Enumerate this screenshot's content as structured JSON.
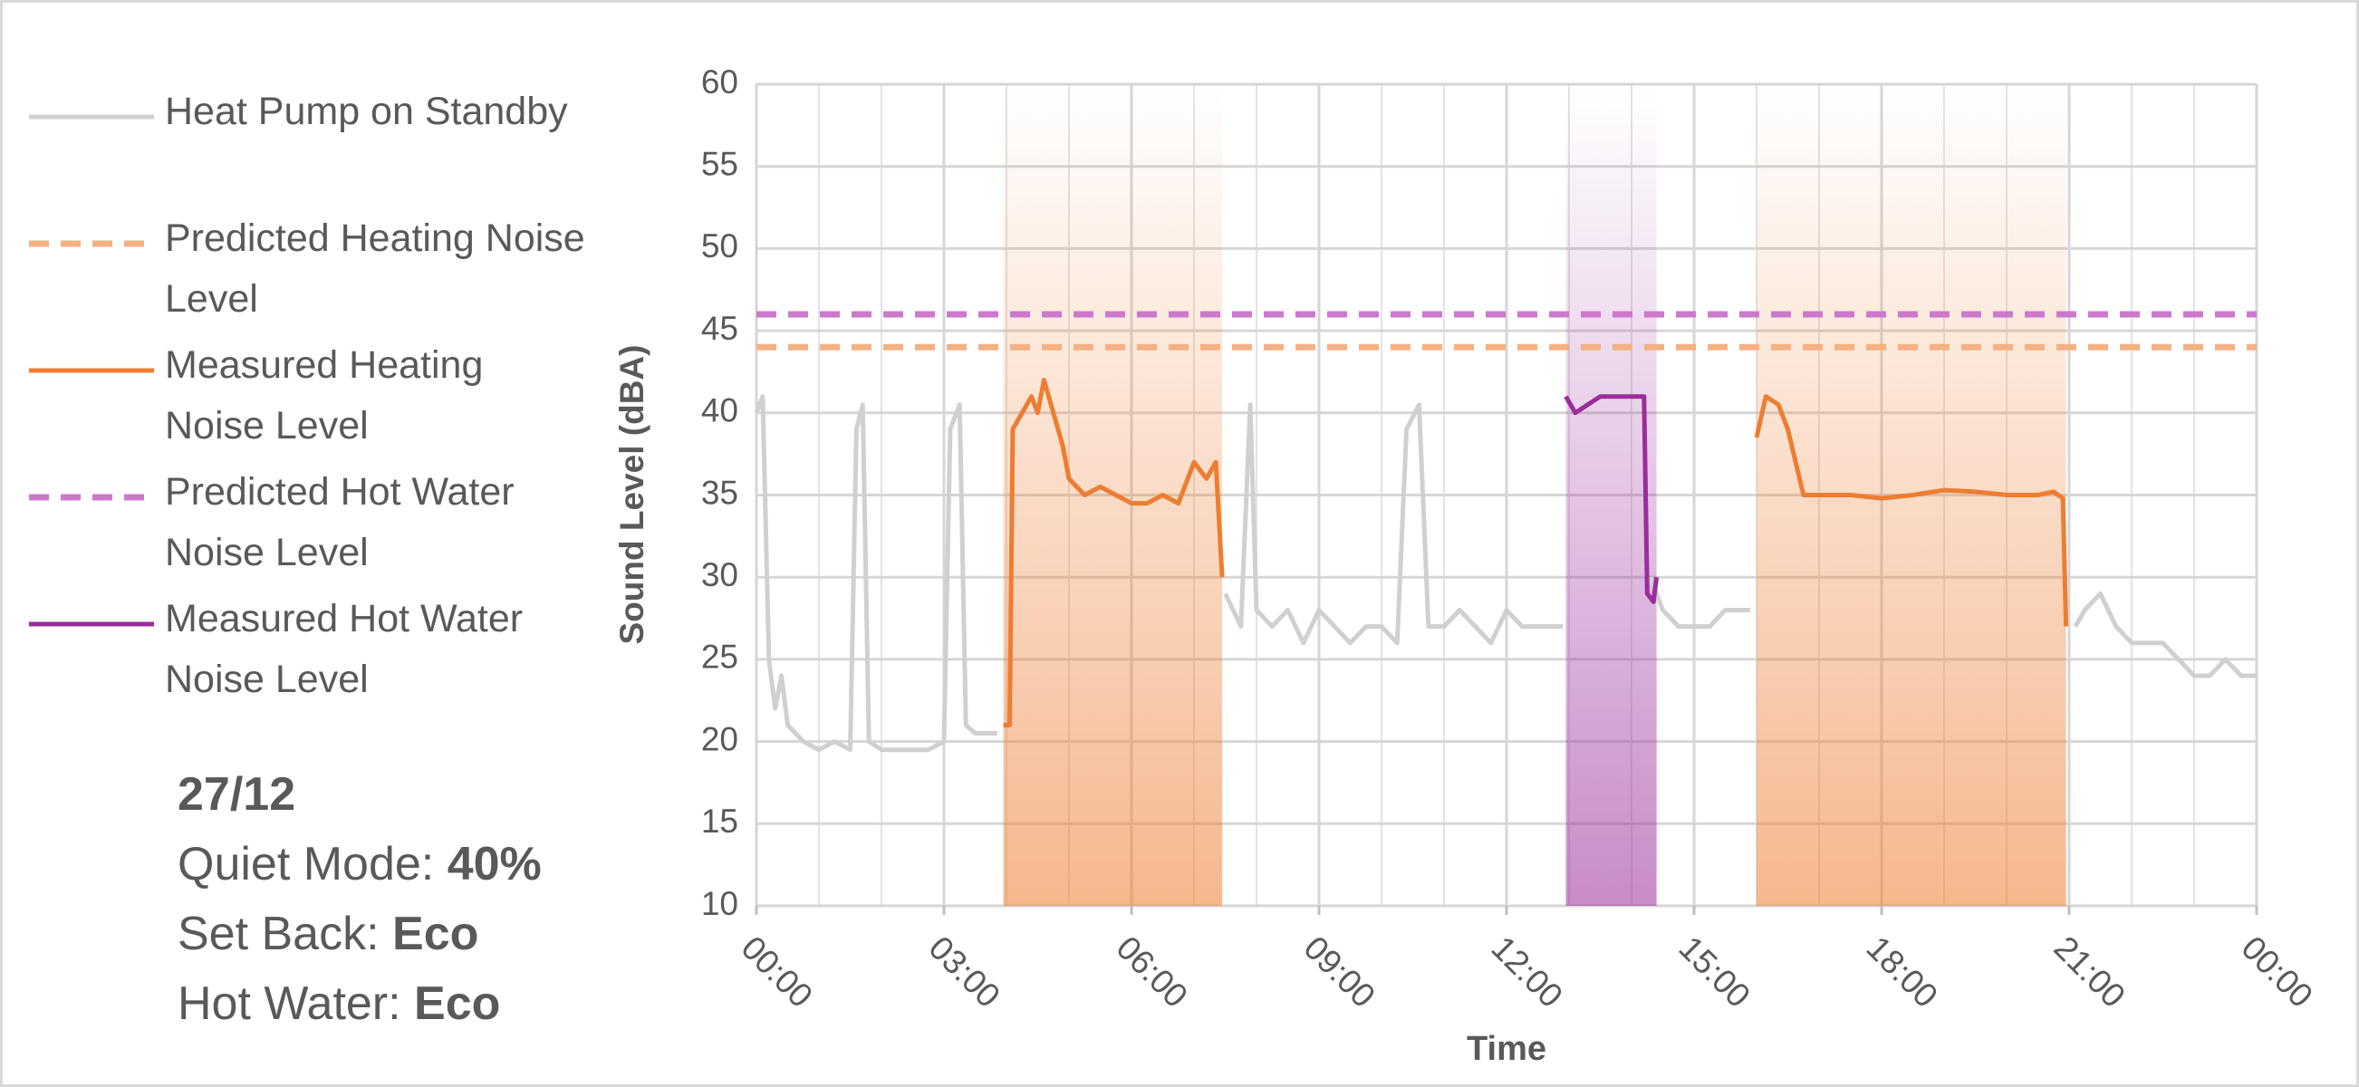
{
  "chart_data": {
    "type": "line",
    "xlabel": "Time",
    "ylabel": "Sound Level (dBA)",
    "xlim": [
      0,
      24
    ],
    "ylim": [
      10,
      60
    ],
    "xticks": [
      {
        "value": 0,
        "label": "00:00"
      },
      {
        "value": 3,
        "label": "03:00"
      },
      {
        "value": 6,
        "label": "06:00"
      },
      {
        "value": 9,
        "label": "09:00"
      },
      {
        "value": 12,
        "label": "12:00"
      },
      {
        "value": 15,
        "label": "15:00"
      },
      {
        "value": 18,
        "label": "18:00"
      },
      {
        "value": 21,
        "label": "21:00"
      },
      {
        "value": 24,
        "label": "00:00"
      }
    ],
    "yticks": [
      10,
      15,
      20,
      25,
      30,
      35,
      40,
      45,
      50,
      55,
      60
    ],
    "minor_grid_step": 1,
    "grid": true,
    "legend": "left",
    "series": [
      {
        "name": "Heat Pump on Standby",
        "color": "#d0d0d0",
        "dashed": false,
        "shaded": false,
        "x": [
          0,
          0.1,
          0.2,
          0.3,
          0.4,
          0.5,
          0.75,
          1,
          1.25,
          1.5,
          1.6,
          1.7,
          1.8,
          2,
          2.25,
          2.5,
          2.75,
          3,
          3.1,
          3.25,
          3.35,
          3.5,
          3.85,
          3.9,
          7.5,
          7.75,
          7.9,
          8,
          8.25,
          8.5,
          8.75,
          9,
          9.25,
          9.5,
          9.75,
          10,
          10.25,
          10.4,
          10.6,
          10.75,
          11,
          11.25,
          11.5,
          11.75,
          12,
          12.25,
          12.5,
          12.75,
          12.9,
          12.95,
          14.3,
          14.5,
          14.75,
          15,
          15.25,
          15.5,
          15.75,
          15.9,
          16,
          21.1,
          21.25,
          21.5,
          21.75,
          22,
          22.25,
          22.5,
          22.75,
          23,
          23.25,
          23.5,
          23.75,
          24
        ],
        "values": [
          40,
          41,
          25,
          22,
          24,
          21,
          20,
          19.5,
          20,
          19.5,
          39,
          40.5,
          20,
          19.5,
          19.5,
          19.5,
          19.5,
          20,
          39,
          40.5,
          21,
          20.5,
          20.5,
          null,
          29,
          27,
          40.5,
          28,
          27,
          28,
          26,
          28,
          27,
          26,
          27,
          27,
          26,
          39,
          40.5,
          27,
          27,
          28,
          27,
          26,
          28,
          27,
          27,
          27,
          27,
          null,
          30,
          28,
          27,
          27,
          27,
          28,
          28,
          28,
          null,
          27,
          28,
          29,
          27,
          26,
          26,
          26,
          25,
          24,
          24,
          25,
          24,
          24
        ]
      },
      {
        "name": "Predicted Heating Noise Level",
        "color": "#f4b183",
        "dashed": true,
        "shaded": false,
        "x": [
          0,
          24
        ],
        "values": [
          44,
          44
        ]
      },
      {
        "name": "Measured Heating Noise Level",
        "color": "#ed7d31",
        "dashed": false,
        "shaded": true,
        "x": [
          3.95,
          4.05,
          4.1,
          4.25,
          4.4,
          4.5,
          4.6,
          4.75,
          4.9,
          5,
          5.25,
          5.5,
          5.75,
          6,
          6.25,
          6.5,
          6.75,
          7,
          7.2,
          7.35,
          7.45,
          7.5,
          16,
          16.15,
          16.35,
          16.5,
          16.75,
          17,
          17.5,
          18,
          18.5,
          19,
          19.5,
          20,
          20.5,
          20.75,
          20.9,
          20.95
        ],
        "values": [
          21,
          21,
          39,
          40,
          41,
          40,
          42,
          40,
          38,
          36,
          35,
          35.5,
          35,
          34.5,
          34.5,
          35,
          34.5,
          37,
          36,
          37,
          30,
          null,
          38.5,
          41,
          40.5,
          39,
          35,
          35,
          35,
          34.8,
          35,
          35.3,
          35.2,
          35,
          35,
          35.2,
          34.8,
          27
        ]
      },
      {
        "name": "Predicted Hot Water Noise Level",
        "color": "#cc79cc",
        "dashed": true,
        "shaded": false,
        "x": [
          0,
          24
        ],
        "values": [
          46,
          46
        ]
      },
      {
        "name": "Measured Hot Water Noise Level",
        "color": "#9b2d9b",
        "dashed": false,
        "shaded": true,
        "x": [
          12.95,
          13.1,
          13.3,
          13.5,
          13.75,
          14,
          14.2,
          14.25,
          14.35,
          14.4
        ],
        "values": [
          41,
          40,
          40.5,
          41,
          41,
          41,
          41,
          29,
          28.5,
          30
        ]
      }
    ]
  },
  "info": {
    "date": "27/12",
    "settings": [
      {
        "label": "Quiet Mode:",
        "value": "40%"
      },
      {
        "label": "Set Back:",
        "value": "Eco"
      },
      {
        "label": "Hot Water:",
        "value": "Eco"
      }
    ]
  }
}
